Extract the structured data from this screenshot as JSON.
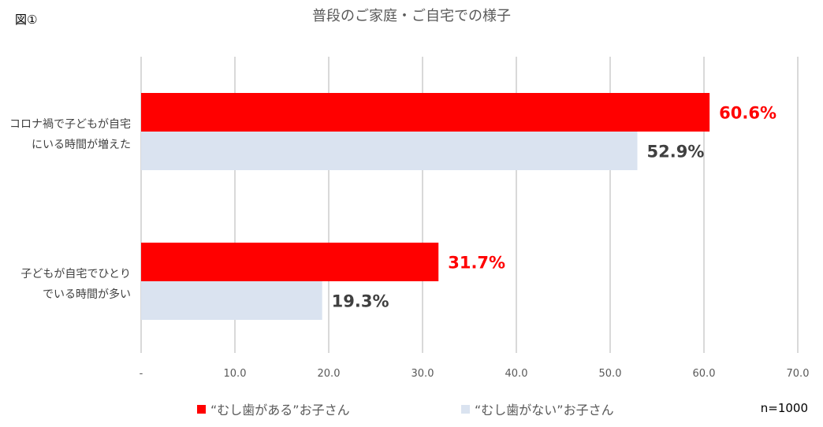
{
  "figure_label": "図①",
  "note": "n=1000",
  "colors": {
    "with_cavity": "#ff0000",
    "without_cavity": "#dae3f0",
    "label_without": "#404040",
    "grid": "#d9d9d9"
  },
  "chart_data": {
    "type": "bar",
    "orientation": "horizontal",
    "title": "普段のご家庭・ご自宅での様子",
    "categories": [
      [
        "コロナ禍で子どもが自宅",
        "にいる時間が増えた"
      ],
      [
        "子どもが自宅でひとり",
        "でいる時間が多い"
      ]
    ],
    "series": [
      {
        "name": "“むし歯がある”お子さん",
        "values": [
          60.6,
          31.7
        ],
        "labels": [
          "60.6%",
          "31.7%"
        ]
      },
      {
        "name": "“むし歯がない”お子さん",
        "values": [
          52.9,
          19.3
        ],
        "labels": [
          "52.9%",
          "19.3%"
        ]
      }
    ],
    "xlim": [
      0,
      70
    ],
    "xticks": [
      0,
      10,
      20,
      30,
      40,
      50,
      60,
      70
    ],
    "xtick_labels": [
      "-",
      "10.0",
      "20.0",
      "30.0",
      "40.0",
      "50.0",
      "60.0",
      "70.0"
    ],
    "grid": true,
    "legend_position": "bottom"
  }
}
